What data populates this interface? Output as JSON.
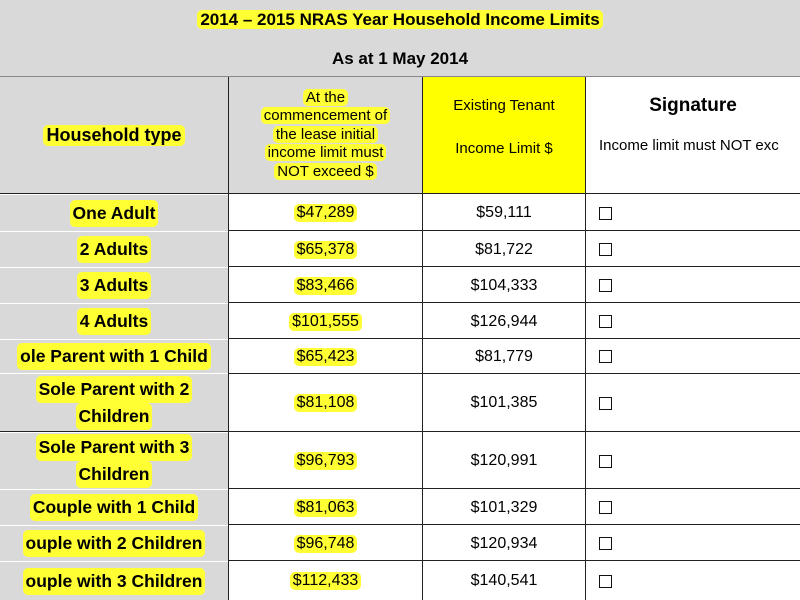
{
  "title": "2014 – 2015 NRAS Year Household Income Limits",
  "subtitle": "As at 1 May 2014",
  "headers": {
    "household_type": "Household type",
    "commencement_lines": [
      "At the",
      "commencement of",
      "the lease initial",
      "income limit must",
      "NOT exceed $"
    ],
    "existing_line1": "Existing Tenant",
    "existing_line2": "Income Limit $",
    "signature": "Signature",
    "signature_sub": "Income limit must NOT exc"
  },
  "rows": [
    {
      "label": "One Adult",
      "label2": "",
      "initial": "$47,289",
      "existing": "$59,111",
      "signed": false
    },
    {
      "label": "2 Adults",
      "label2": "",
      "initial": "$65,378",
      "existing": "$81,722",
      "signed": false
    },
    {
      "label": "3 Adults",
      "label2": "",
      "initial": "$83,466",
      "existing": "$104,333",
      "signed": false
    },
    {
      "label": "4 Adults",
      "label2": "",
      "initial": "$101,555",
      "existing": "$126,944",
      "signed": false
    },
    {
      "label": "ole Parent with 1 Child",
      "label2": "",
      "initial": "$65,423",
      "existing": "$81,779",
      "signed": false
    },
    {
      "label": "Sole Parent with 2",
      "label2": "Children",
      "initial": "$81,108",
      "existing": "$101,385",
      "signed": false
    },
    {
      "label": "Sole Parent with 3",
      "label2": "Children",
      "initial": "$96,793",
      "existing": "$120,991",
      "signed": false
    },
    {
      "label": "Couple with 1 Child",
      "label2": "",
      "initial": "$81,063",
      "existing": "$101,329",
      "signed": false
    },
    {
      "label": "ouple with 2 Children",
      "label2": "",
      "initial": "$96,748",
      "existing": "$120,934",
      "signed": false
    },
    {
      "label": "ouple with 3 Children",
      "label2": "",
      "initial": "$112,433",
      "existing": "$140,541",
      "signed": false
    }
  ]
}
